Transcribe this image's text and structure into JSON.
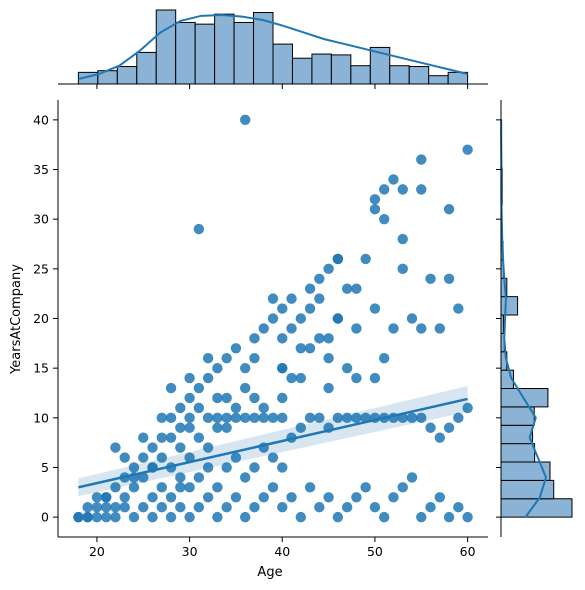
{
  "chart_data": {
    "type": "scatter",
    "subtype": "jointplot-regression",
    "title": "",
    "xlabel": "Age",
    "ylabel": "YearsAtCompany",
    "xlim": [
      15.8,
      62.2
    ],
    "ylim": [
      -2,
      42
    ],
    "xticks": [
      20,
      30,
      40,
      50,
      60
    ],
    "yticks": [
      0,
      5,
      10,
      15,
      20,
      25,
      30,
      35,
      40
    ],
    "grid": false,
    "colors": {
      "points": "#1f77b4",
      "regression_line": "#1f77b4",
      "confidence_band": "#1f77b4",
      "hist_fill": "#8bb3d6",
      "hist_edge": "#000000",
      "kde_line": "#1f77b4"
    },
    "points": {
      "x": [
        18,
        18,
        19,
        19,
        20,
        20,
        20,
        21,
        21,
        21,
        22,
        22,
        22,
        23,
        23,
        23,
        24,
        24,
        24,
        25,
        25,
        25,
        26,
        26,
        26,
        26,
        27,
        27,
        27,
        27,
        28,
        28,
        28,
        28,
        28,
        29,
        29,
        29,
        29,
        29,
        30,
        30,
        30,
        30,
        30,
        31,
        31,
        31,
        31,
        31,
        32,
        32,
        32,
        32,
        32,
        33,
        33,
        33,
        33,
        33,
        34,
        34,
        34,
        34,
        35,
        35,
        35,
        35,
        36,
        36,
        36,
        36,
        37,
        37,
        37,
        37,
        38,
        38,
        38,
        38,
        39,
        39,
        39,
        39,
        40,
        40,
        40,
        40,
        41,
        41,
        41,
        42,
        42,
        42,
        43,
        43,
        43,
        44,
        44,
        44,
        45,
        45,
        45,
        46,
        46,
        46,
        47,
        47,
        48,
        48,
        49,
        49,
        50,
        50,
        51,
        51,
        52,
        52,
        53,
        53,
        54,
        54,
        55,
        55,
        56,
        56,
        57,
        57,
        58,
        58,
        59,
        59,
        60,
        60,
        28,
        30,
        32,
        34,
        36,
        38,
        40,
        42,
        44,
        46,
        48,
        50,
        30,
        35,
        40,
        45,
        50,
        55,
        33,
        37,
        41,
        43,
        47,
        52,
        37,
        40,
        42,
        45,
        48,
        51,
        54,
        40,
        41,
        43,
        44,
        46,
        47,
        49,
        50,
        50,
        51,
        51,
        52,
        53,
        53,
        55,
        55,
        57,
        58,
        59,
        58,
        60,
        46,
        45,
        48,
        53,
        56,
        36,
        39,
        31,
        34,
        27,
        25,
        22,
        26,
        29,
        24,
        21,
        23,
        19
      ],
      "y": [
        0,
        0,
        0,
        1,
        0,
        1,
        2,
        0,
        1,
        2,
        0,
        1,
        3,
        1,
        2,
        4,
        0,
        3,
        5,
        1,
        4,
        6,
        0,
        2,
        5,
        7,
        1,
        3,
        6,
        8,
        0,
        2,
        5,
        8,
        10,
        1,
        4,
        7,
        9,
        11,
        0,
        3,
        6,
        10,
        12,
        1,
        4,
        8,
        11,
        13,
        2,
        5,
        7,
        10,
        14,
        0,
        3,
        9,
        12,
        15,
        1,
        5,
        10,
        16,
        2,
        6,
        10,
        17,
        0,
        4,
        10,
        15,
        1,
        5,
        10,
        18,
        2,
        7,
        10,
        19,
        3,
        6,
        10,
        20,
        1,
        5,
        10,
        21,
        2,
        8,
        22,
        0,
        9,
        20,
        3,
        10,
        23,
        1,
        10,
        24,
        2,
        9,
        25,
        0,
        10,
        26,
        1,
        10,
        2,
        10,
        3,
        10,
        1,
        10,
        0,
        10,
        2,
        10,
        3,
        10,
        4,
        10,
        0,
        10,
        1,
        9,
        2,
        8,
        0,
        9,
        1,
        10,
        0,
        11,
        13,
        14,
        16,
        12,
        13,
        11,
        15,
        14,
        18,
        20,
        19,
        21,
        9,
        11,
        12,
        13,
        14,
        19,
        10,
        16,
        14,
        17,
        15,
        19,
        12,
        15,
        17,
        16,
        14,
        16,
        20,
        18,
        19,
        21,
        22,
        20,
        23,
        26,
        31,
        32,
        30,
        33,
        34,
        33,
        25,
        36,
        33,
        19,
        24,
        21,
        31,
        37,
        26,
        18,
        23,
        28,
        24,
        40,
        22,
        29,
        9,
        10,
        8,
        7,
        5,
        3,
        4,
        2,
        6,
        0
      ],
      "approx": true
    },
    "regression": {
      "x": [
        18,
        60
      ],
      "y": [
        3.0,
        11.9
      ],
      "ci_lower": [
        2.1,
        10.6
      ],
      "ci_upper": [
        3.9,
        13.2
      ]
    },
    "marginal_x": {
      "bin_edges": [
        18,
        20.1,
        22.2,
        24.3,
        26.4,
        28.5,
        30.6,
        32.7,
        34.8,
        36.9,
        39,
        41.1,
        43.2,
        45.3,
        47.4,
        49.5,
        51.6,
        53.7,
        55.8,
        57.9,
        60
      ],
      "counts": [
        14,
        16,
        21,
        38,
        89,
        74,
        72,
        84,
        74,
        86,
        48,
        31,
        36,
        35,
        22,
        44,
        22,
        21,
        10,
        14
      ],
      "kde_y": [
        6,
        12,
        22,
        40,
        62,
        76,
        82,
        83,
        81,
        77,
        70,
        62,
        54,
        48,
        42,
        36,
        30,
        24,
        18,
        12
      ]
    },
    "marginal_y": {
      "bin_edges": [
        0,
        1.85,
        3.7,
        5.55,
        7.4,
        9.25,
        11.1,
        12.95,
        14.8,
        16.65,
        18.5,
        20.35,
        22.2,
        24.05,
        25.9,
        27.75,
        29.6,
        31.45,
        33.3,
        35.15,
        37,
        40
      ],
      "counts": [
        171,
        127,
        118,
        81,
        76,
        80,
        113,
        30,
        14,
        8,
        6,
        40,
        14,
        6,
        5,
        0,
        2,
        3,
        3,
        1,
        1
      ],
      "kde_x": [
        60,
        95,
        110,
        90,
        70,
        85,
        55,
        25,
        12,
        8,
        10,
        12,
        8,
        5,
        3,
        2,
        1,
        1,
        1,
        0.5,
        0.5
      ]
    }
  }
}
